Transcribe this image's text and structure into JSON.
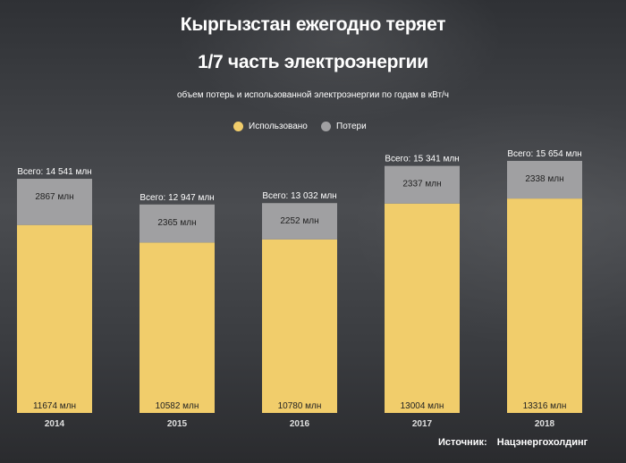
{
  "title_line1": "Кыргызстан ежегодно теряет",
  "title_line2": "1/7 часть электроэнергии",
  "subtitle": "объем потерь и использованной электроэнергии по годам в кВт/ч",
  "legend": [
    {
      "label": "Использовано",
      "color": "#f1cd6b"
    },
    {
      "label": "Потери",
      "color": "#a0a0a2"
    }
  ],
  "source": {
    "label": "Источник:",
    "value": "Нацэнергохолдинг"
  },
  "chart_data": {
    "type": "bar",
    "stacked": true,
    "categories": [
      "2014",
      "2015",
      "2016",
      "2017",
      "2018"
    ],
    "series": [
      {
        "name": "Использовано",
        "values": [
          11674,
          10582,
          10780,
          13004,
          13316
        ],
        "labels": [
          "11674 млн",
          "10582 млн",
          "10780 млн",
          "13004 млн",
          "13316 млн"
        ],
        "color": "#f1cd6b"
      },
      {
        "name": "Потери",
        "values": [
          2867,
          2365,
          2252,
          2337,
          2338
        ],
        "labels": [
          "2867 млн",
          "2365 млн",
          "2252 млн",
          "2337 млн",
          "2338 млн"
        ],
        "color": "#a0a0a2"
      }
    ],
    "totals": [
      "Всего: 14 541 млн",
      "Всего: 12 947 млн",
      "Всего: 13 032 млн",
      "Всего: 15 341 млн",
      "Всего: 15 654 млн"
    ],
    "unit": "млн кВт/ч"
  }
}
